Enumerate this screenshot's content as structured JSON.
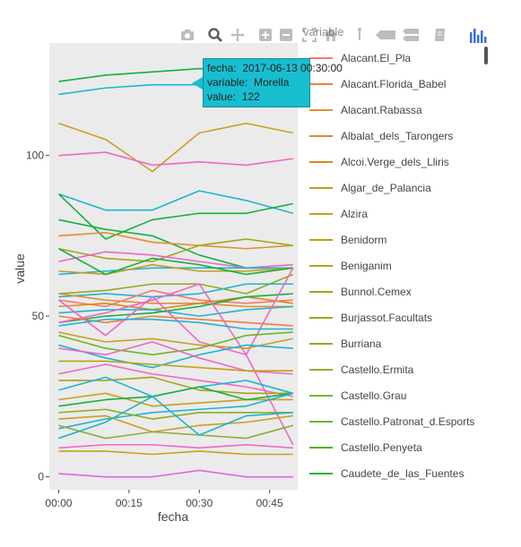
{
  "chart_data": {
    "type": "line",
    "xlabel": "fecha",
    "ylabel": "value",
    "x_ticks": [
      "00:00",
      "00:15",
      "00:30",
      "00:45"
    ],
    "x": [
      0,
      10,
      20,
      30,
      40,
      50
    ],
    "xlim": [
      -2,
      51
    ],
    "ylim": [
      -4,
      135
    ],
    "y_ticks": [
      0,
      50,
      100
    ],
    "grid": false,
    "legend_title": "variable",
    "legend": [
      {
        "name": "Alacant.El_Pla",
        "color": "#f8766d"
      },
      {
        "name": "Alacant.Florida_Babel",
        "color": "#f17e3a"
      },
      {
        "name": "Alacant.Rabassa",
        "color": "#e48f30"
      },
      {
        "name": "Albalat_dels_Tarongers",
        "color": "#da8a3d"
      },
      {
        "name": "Alcoi.Verge_dels_Lliris",
        "color": "#d88a1c"
      },
      {
        "name": "Algar_de_Palancia",
        "color": "#c99a1a"
      },
      {
        "name": "Alzira",
        "color": "#c9a01f"
      },
      {
        "name": "Benidorm",
        "color": "#bda20f"
      },
      {
        "name": "Beniganim",
        "color": "#b8a21b"
      },
      {
        "name": "Bunnol.Cemex",
        "color": "#a7a412"
      },
      {
        "name": "Burjassot.Facultats",
        "color": "#9ea81a"
      },
      {
        "name": "Burriana",
        "color": "#94aa1f"
      },
      {
        "name": "Castello.Ermita",
        "color": "#89b138"
      },
      {
        "name": "Castello.Grau",
        "color": "#7bb42d"
      },
      {
        "name": "Castello.Patronat_d.Esports",
        "color": "#6bb826"
      },
      {
        "name": "Castello.Penyeta",
        "color": "#4eb51f"
      },
      {
        "name": "Caudete_de_las_Fuentes",
        "color": "#22b52f"
      }
    ],
    "series": [
      {
        "color": "#14b13c",
        "values": [
          123,
          125,
          126,
          127,
          127,
          127
        ]
      },
      {
        "color": "#1bb5d3",
        "values": [
          119,
          121,
          122,
          122,
          122,
          122
        ]
      },
      {
        "color": "#c9a01f",
        "values": [
          110,
          105,
          95,
          107,
          110,
          107
        ]
      },
      {
        "color": "#f066c8",
        "values": [
          100,
          101,
          97,
          98,
          97,
          99
        ]
      },
      {
        "color": "#1bb5d3",
        "values": [
          88,
          83,
          83,
          89,
          86,
          82
        ]
      },
      {
        "color": "#14b13c",
        "values": [
          88,
          74,
          80,
          82,
          82,
          85
        ]
      },
      {
        "color": "#14b13c",
        "values": [
          80,
          77,
          75,
          69,
          65,
          65
        ]
      },
      {
        "color": "#e48f30",
        "values": [
          75,
          76,
          73,
          72,
          71,
          72
        ]
      },
      {
        "color": "#a7a412",
        "values": [
          71,
          68,
          67,
          72,
          74,
          72
        ]
      },
      {
        "color": "#f066c8",
        "values": [
          67,
          70,
          69,
          67,
          65,
          66
        ]
      },
      {
        "color": "#1bb5d3",
        "values": [
          63,
          64,
          65,
          65,
          65,
          65
        ]
      },
      {
        "color": "#c99a1a",
        "values": [
          64,
          63,
          66,
          64,
          64,
          65
        ]
      },
      {
        "color": "#14b13c",
        "values": [
          71,
          63,
          68,
          66,
          63,
          65
        ]
      },
      {
        "color": "#94aa1f",
        "values": [
          57,
          58,
          60,
          60,
          57,
          63
        ]
      },
      {
        "color": "#1bb5d3",
        "values": [
          56,
          57,
          56,
          57,
          60,
          60
        ]
      },
      {
        "color": "#f8766d",
        "values": [
          55,
          53,
          58,
          55,
          54,
          55
        ]
      },
      {
        "color": "#e48f30",
        "values": [
          57,
          55,
          54,
          54,
          53,
          53
        ]
      },
      {
        "color": "#d88a1c",
        "values": [
          53,
          54,
          52,
          54,
          56,
          54
        ]
      },
      {
        "color": "#1bb5d3",
        "values": [
          51,
          52,
          52,
          50,
          52,
          53
        ]
      },
      {
        "color": "#14b13c",
        "values": [
          48,
          50,
          51,
          53,
          56,
          57
        ]
      },
      {
        "color": "#f066c8",
        "values": [
          48,
          51,
          55,
          60,
          38,
          65
        ]
      },
      {
        "color": "#f066c8",
        "values": [
          55,
          44,
          56,
          42,
          38,
          10
        ]
      },
      {
        "color": "#f17e3a",
        "values": [
          50,
          48,
          50,
          49,
          48,
          47
        ]
      },
      {
        "color": "#1bb5d3",
        "values": [
          47,
          49,
          49,
          48,
          46,
          46
        ]
      },
      {
        "color": "#c9a01f",
        "values": [
          45,
          42,
          43,
          41,
          40,
          43
        ]
      },
      {
        "color": "#6bb826",
        "values": [
          44,
          40,
          38,
          40,
          44,
          45
        ]
      },
      {
        "color": "#1bb5d3",
        "values": [
          41,
          37,
          34,
          38,
          41,
          40
        ]
      },
      {
        "color": "#f066c8",
        "values": [
          40,
          38,
          42,
          37,
          33,
          32
        ]
      },
      {
        "color": "#bda20f",
        "values": [
          36,
          36,
          35,
          34,
          33,
          33
        ]
      },
      {
        "color": "#f066c8",
        "values": [
          32,
          35,
          32,
          30,
          28,
          25
        ]
      },
      {
        "color": "#a7a412",
        "values": [
          30,
          30,
          31,
          27,
          26,
          26
        ]
      },
      {
        "color": "#1bb5d3",
        "values": [
          27,
          31,
          25,
          28,
          30,
          26
        ]
      },
      {
        "color": "#c9a01f",
        "values": [
          24,
          26,
          22,
          23,
          24,
          24
        ]
      },
      {
        "color": "#14b13c",
        "values": [
          22,
          24,
          25,
          28,
          24,
          26
        ]
      },
      {
        "color": "#1bb5d3",
        "values": [
          15,
          18,
          20,
          21,
          22,
          26
        ]
      },
      {
        "color": "#94aa1f",
        "values": [
          20,
          21,
          18,
          20,
          20,
          20
        ]
      },
      {
        "color": "#c9a01f",
        "values": [
          18,
          19,
          14,
          16,
          17,
          19
        ]
      },
      {
        "color": "#89b138",
        "values": [
          16,
          12,
          14,
          13,
          12,
          16
        ]
      },
      {
        "color": "#1bb5d3",
        "values": [
          12,
          17,
          25,
          13,
          19,
          20
        ]
      },
      {
        "color": "#f066c8",
        "values": [
          9,
          10,
          10,
          9,
          10,
          9
        ]
      },
      {
        "color": "#c9a01f",
        "values": [
          8,
          8,
          7,
          8,
          7,
          7
        ]
      },
      {
        "color": "#e066e0",
        "values": [
          1,
          0,
          0,
          2,
          0,
          0
        ]
      }
    ]
  },
  "tooltip": {
    "fecha_label": "fecha:",
    "fecha_value": "2017-06-13 00:30:00",
    "variable_label": "variable:",
    "variable_value": "Morella",
    "value_label": "value:",
    "value_value": "122"
  },
  "legend_header": "variable",
  "modebar": {
    "icons": [
      "camera-icon",
      "zoom-icon",
      "pan-icon",
      "zoom-in-icon",
      "zoom-out-icon",
      "autoscale-icon",
      "home-icon",
      "spike-icon",
      "hover-closest-icon",
      "hover-compare-icon",
      "edit-icon",
      "plotly-logo-icon"
    ]
  }
}
